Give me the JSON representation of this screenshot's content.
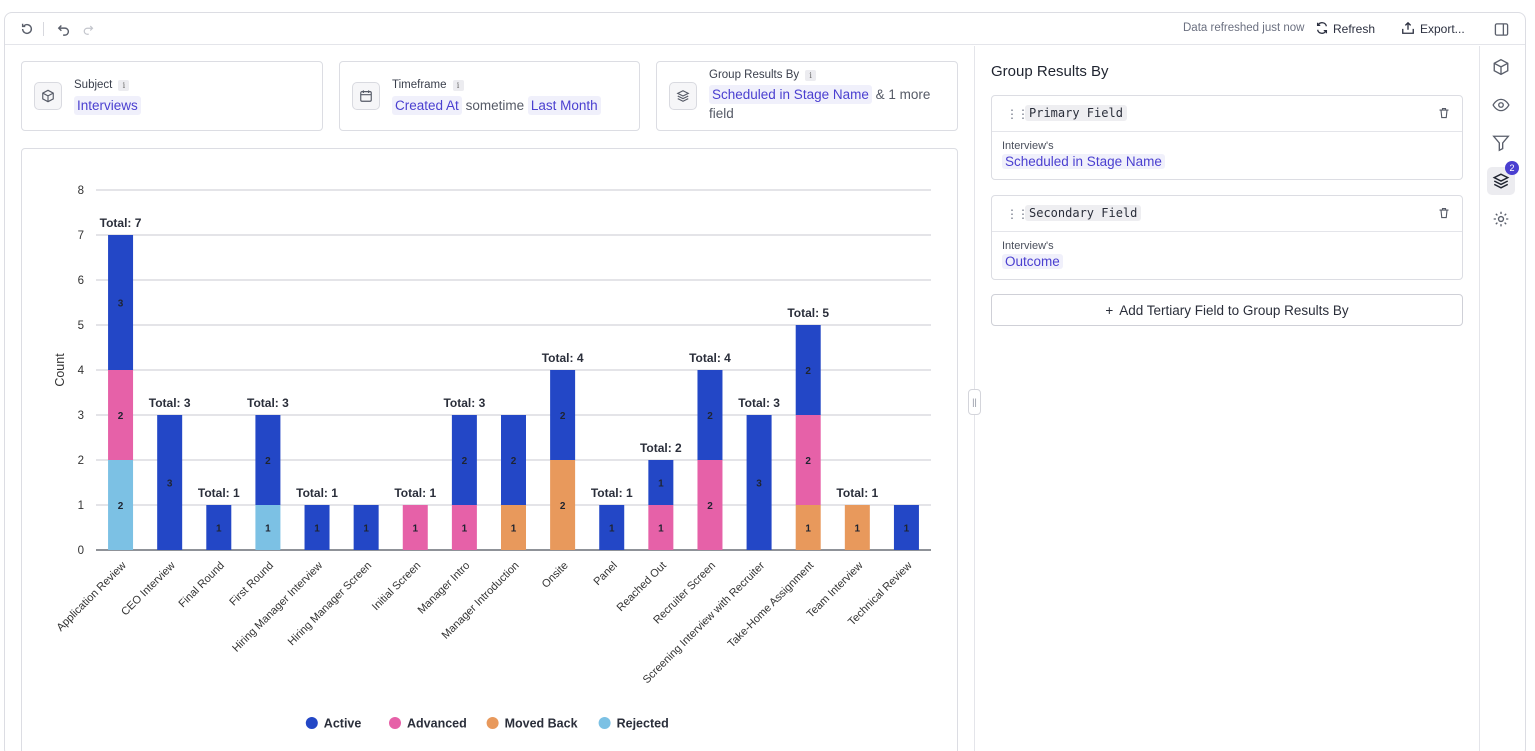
{
  "toolbar": {
    "refreshed_text": "Data refreshed just now",
    "refresh_label": "Refresh",
    "export_label": "Export..."
  },
  "filters": {
    "subject": {
      "label": "Subject",
      "value": "Interviews"
    },
    "timeframe": {
      "label": "Timeframe",
      "field": "Created At",
      "operator": "sometime",
      "range": "Last Month"
    },
    "group": {
      "label": "Group Results By",
      "value": "Scheduled in Stage Name",
      "extra": "& 1 more",
      "extra2": "field"
    }
  },
  "right_panel": {
    "title": "Group Results By",
    "primary": {
      "name": "Primary Field",
      "sub": "Interview's",
      "value": "Scheduled in Stage Name"
    },
    "secondary": {
      "name": "Secondary Field",
      "sub": "Interview's",
      "value": "Outcome"
    },
    "add_label": "Add Tertiary Field to Group Results By",
    "badge_count": "2"
  },
  "colors": {
    "Active": "#2347c6",
    "Advanced": "#e661a8",
    "Moved Back": "#e8995c",
    "Rejected": "#7cc1e4",
    "accent": "#4a3fd0"
  },
  "chart_data": {
    "type": "bar",
    "stacked": true,
    "ylabel": "Count",
    "ylim": [
      0,
      8
    ],
    "yticks": [
      "0",
      "1",
      "2",
      "3",
      "4",
      "5",
      "6",
      "7",
      "8"
    ],
    "legend_position": "bottom",
    "categories": [
      "Application Review",
      "CEO Interview",
      "Final Round",
      "First Round",
      "Hiring Manager Interview",
      "Hiring Manager Screen",
      "Initial Screen",
      "Manager Intro",
      "Manager Introduction",
      "Onsite",
      "Panel",
      "Reached Out",
      "Recruiter Screen",
      "Screening Interview with Recruiter",
      "Take-Home Assignment",
      "Team Interview",
      "Technical Review"
    ],
    "series": [
      {
        "name": "Rejected",
        "values": [
          2,
          0,
          0,
          1,
          0,
          0,
          0,
          0,
          0,
          0,
          0,
          0,
          0,
          0,
          0,
          0,
          0
        ]
      },
      {
        "name": "Moved Back",
        "values": [
          0,
          0,
          0,
          0,
          0,
          0,
          0,
          0,
          1,
          2,
          0,
          0,
          0,
          0,
          1,
          1,
          0
        ]
      },
      {
        "name": "Advanced",
        "values": [
          2,
          0,
          0,
          0,
          0,
          0,
          1,
          1,
          0,
          0,
          0,
          1,
          2,
          0,
          2,
          0,
          0
        ]
      },
      {
        "name": "Active",
        "values": [
          3,
          3,
          1,
          2,
          1,
          1,
          0,
          2,
          2,
          2,
          1,
          1,
          2,
          3,
          2,
          0,
          1
        ]
      }
    ],
    "legend": [
      "Active",
      "Advanced",
      "Moved Back",
      "Rejected"
    ],
    "total_labels": [
      "Total: 7",
      "Total: 3",
      "Total: 1",
      "Total: 3",
      "Total: 1",
      "",
      "Total: 1",
      "Total: 3",
      "",
      "Total: 4",
      "Total: 1",
      "Total: 2",
      "Total: 4",
      "Total: 3",
      "Total: 5",
      "Total: 1",
      ""
    ]
  }
}
